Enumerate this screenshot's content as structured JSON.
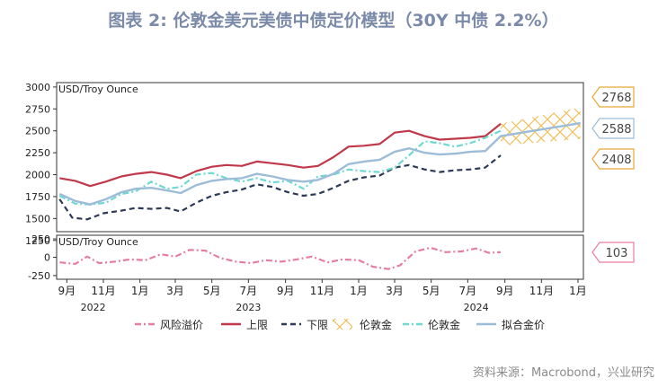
{
  "title": "图表 2:  伦敦金美元美债中债定价模型（30Y 中债 2.2%）",
  "source": "资料来源：Macrobond，兴业研究",
  "colors": {
    "upper": "#c0394b",
    "lower": "#2c3a55",
    "fitted": "#9cbcd8",
    "gold": "#6fd8d0",
    "forecast": "#f0c060",
    "risk": "#e57ea0",
    "callout_upper": "#e8a838",
    "callout_fit": "#9cbcd8",
    "callout_risk": "#e57ea0"
  },
  "chart_data": [
    {
      "type": "line",
      "panel": "main",
      "unit_label": "USD/Troy Ounce",
      "ylim": [
        1350,
        3050
      ],
      "yticks": [
        "3000",
        "2750",
        "2500",
        "2250",
        "2000",
        "1750",
        "1500",
        "1250"
      ],
      "x_range": [
        "2022-08-15",
        "2025-01-10"
      ],
      "forecast_start": "2024-08-25",
      "series": [
        {
          "name": "上限",
          "key": "upper",
          "style": "solid",
          "points": [
            [
              "2022-08-20",
              1960
            ],
            [
              "2022-09-15",
              1930
            ],
            [
              "2022-10-10",
              1870
            ],
            [
              "2022-11-05",
              1920
            ],
            [
              "2022-12-01",
              1980
            ],
            [
              "2022-12-25",
              2010
            ],
            [
              "2023-01-20",
              2030
            ],
            [
              "2023-02-15",
              2000
            ],
            [
              "2023-03-10",
              1960
            ],
            [
              "2023-04-05",
              2040
            ],
            [
              "2023-05-01",
              2090
            ],
            [
              "2023-05-25",
              2110
            ],
            [
              "2023-06-20",
              2100
            ],
            [
              "2023-07-15",
              2150
            ],
            [
              "2023-08-10",
              2130
            ],
            [
              "2023-09-05",
              2110
            ],
            [
              "2023-10-01",
              2080
            ],
            [
              "2023-10-25",
              2100
            ],
            [
              "2023-11-20",
              2200
            ],
            [
              "2023-12-15",
              2320
            ],
            [
              "2024-01-10",
              2330
            ],
            [
              "2024-02-05",
              2350
            ],
            [
              "2024-03-01",
              2480
            ],
            [
              "2024-03-25",
              2500
            ],
            [
              "2024-04-20",
              2440
            ],
            [
              "2024-05-15",
              2400
            ],
            [
              "2024-06-10",
              2410
            ],
            [
              "2024-07-05",
              2420
            ],
            [
              "2024-07-30",
              2440
            ],
            [
              "2024-08-25",
              2580
            ]
          ]
        },
        {
          "name": "下限",
          "key": "lower",
          "style": "dashed",
          "points": [
            [
              "2022-08-20",
              1720
            ],
            [
              "2022-09-10",
              1510
            ],
            [
              "2022-10-05",
              1490
            ],
            [
              "2022-11-01",
              1560
            ],
            [
              "2022-12-01",
              1590
            ],
            [
              "2022-12-25",
              1620
            ],
            [
              "2023-01-20",
              1610
            ],
            [
              "2023-02-15",
              1620
            ],
            [
              "2023-03-10",
              1580
            ],
            [
              "2023-04-05",
              1680
            ],
            [
              "2023-05-01",
              1760
            ],
            [
              "2023-05-25",
              1800
            ],
            [
              "2023-06-20",
              1830
            ],
            [
              "2023-07-15",
              1890
            ],
            [
              "2023-08-10",
              1860
            ],
            [
              "2023-09-05",
              1800
            ],
            [
              "2023-10-01",
              1760
            ],
            [
              "2023-10-25",
              1780
            ],
            [
              "2023-11-20",
              1850
            ],
            [
              "2023-12-15",
              1930
            ],
            [
              "2024-01-10",
              1970
            ],
            [
              "2024-02-05",
              1990
            ],
            [
              "2024-03-01",
              2080
            ],
            [
              "2024-03-25",
              2110
            ],
            [
              "2024-04-20",
              2060
            ],
            [
              "2024-05-15",
              2030
            ],
            [
              "2024-06-10",
              2050
            ],
            [
              "2024-07-05",
              2060
            ],
            [
              "2024-07-30",
              2080
            ],
            [
              "2024-08-25",
              2220
            ]
          ]
        },
        {
          "name": "伦敦金",
          "key": "gold",
          "style": "dashdot",
          "points": [
            [
              "2022-08-20",
              1760
            ],
            [
              "2022-09-15",
              1670
            ],
            [
              "2022-10-10",
              1660
            ],
            [
              "2022-11-05",
              1680
            ],
            [
              "2022-12-01",
              1780
            ],
            [
              "2022-12-25",
              1810
            ],
            [
              "2023-01-20",
              1920
            ],
            [
              "2023-02-15",
              1840
            ],
            [
              "2023-03-10",
              1860
            ],
            [
              "2023-04-05",
              2000
            ],
            [
              "2023-05-01",
              2020
            ],
            [
              "2023-05-25",
              1960
            ],
            [
              "2023-06-20",
              1920
            ],
            [
              "2023-07-15",
              1960
            ],
            [
              "2023-08-10",
              1910
            ],
            [
              "2023-09-05",
              1930
            ],
            [
              "2023-10-01",
              1840
            ],
            [
              "2023-10-25",
              1980
            ],
            [
              "2023-11-20",
              2000
            ],
            [
              "2023-12-15",
              2060
            ],
            [
              "2024-01-10",
              2040
            ],
            [
              "2024-02-05",
              2030
            ],
            [
              "2024-03-01",
              2080
            ],
            [
              "2024-03-25",
              2220
            ],
            [
              "2024-04-20",
              2380
            ],
            [
              "2024-05-15",
              2360
            ],
            [
              "2024-06-10",
              2320
            ],
            [
              "2024-07-05",
              2360
            ],
            [
              "2024-07-30",
              2420
            ],
            [
              "2024-08-25",
              2500
            ]
          ]
        },
        {
          "name": "拟合金价",
          "key": "fitted",
          "style": "solid",
          "points": [
            [
              "2022-08-20",
              1780
            ],
            [
              "2022-09-15",
              1700
            ],
            [
              "2022-10-10",
              1660
            ],
            [
              "2022-11-05",
              1720
            ],
            [
              "2022-12-01",
              1800
            ],
            [
              "2022-12-25",
              1840
            ],
            [
              "2023-01-20",
              1850
            ],
            [
              "2023-02-15",
              1820
            ],
            [
              "2023-03-10",
              1790
            ],
            [
              "2023-04-05",
              1880
            ],
            [
              "2023-05-01",
              1930
            ],
            [
              "2023-05-25",
              1950
            ],
            [
              "2023-06-20",
              1960
            ],
            [
              "2023-07-15",
              2010
            ],
            [
              "2023-08-10",
              1980
            ],
            [
              "2023-09-05",
              1940
            ],
            [
              "2023-10-01",
              1920
            ],
            [
              "2023-10-25",
              1940
            ],
            [
              "2023-11-20",
              2010
            ],
            [
              "2023-12-15",
              2120
            ],
            [
              "2024-01-10",
              2150
            ],
            [
              "2024-02-05",
              2170
            ],
            [
              "2024-03-01",
              2260
            ],
            [
              "2024-03-25",
              2300
            ],
            [
              "2024-04-20",
              2250
            ],
            [
              "2024-05-15",
              2230
            ],
            [
              "2024-06-10",
              2240
            ],
            [
              "2024-07-05",
              2260
            ],
            [
              "2024-07-30",
              2270
            ],
            [
              "2024-08-25",
              2440
            ],
            [
              "2025-01-05",
              2588
            ]
          ]
        }
      ],
      "forecast_band": {
        "name": "伦敦金",
        "start": "2024-08-25",
        "end": "2025-01-05",
        "upper": [
          [
            "2024-08-25",
            2580
          ],
          [
            "2025-01-05",
            2768
          ]
        ],
        "lower": [
          [
            "2024-08-25",
            2330
          ],
          [
            "2025-01-05",
            2408
          ]
        ]
      },
      "callouts": [
        {
          "label": "2768",
          "value": 2768,
          "key": "callout_upper"
        },
        {
          "label": "2588",
          "value": 2588,
          "key": "callout_fit"
        },
        {
          "label": "2408",
          "value": 2408,
          "key": "callout_upper"
        }
      ]
    },
    {
      "type": "line",
      "panel": "risk",
      "unit_label": "USD/Troy Ounce",
      "ylim": [
        -300,
        300
      ],
      "yticks": [
        "250",
        "0",
        "-250"
      ],
      "series": [
        {
          "name": "风险溢价",
          "key": "risk",
          "style": "dashdot",
          "points": [
            [
              "2022-08-20",
              -70
            ],
            [
              "2022-09-15",
              -90
            ],
            [
              "2022-10-05",
              10
            ],
            [
              "2022-10-25",
              -80
            ],
            [
              "2022-11-20",
              -60
            ],
            [
              "2022-12-15",
              -30
            ],
            [
              "2023-01-10",
              -40
            ],
            [
              "2023-02-05",
              40
            ],
            [
              "2023-03-01",
              10
            ],
            [
              "2023-03-25",
              100
            ],
            [
              "2023-04-20",
              90
            ],
            [
              "2023-05-15",
              -10
            ],
            [
              "2023-06-10",
              -60
            ],
            [
              "2023-07-05",
              -80
            ],
            [
              "2023-07-30",
              -40
            ],
            [
              "2023-08-25",
              -60
            ],
            [
              "2023-09-20",
              -30
            ],
            [
              "2023-10-15",
              10
            ],
            [
              "2023-11-10",
              -70
            ],
            [
              "2023-12-05",
              -30
            ],
            [
              "2024-01-01",
              -40
            ],
            [
              "2024-01-25",
              -130
            ],
            [
              "2024-02-20",
              -160
            ],
            [
              "2024-03-10",
              -110
            ],
            [
              "2024-04-05",
              80
            ],
            [
              "2024-04-30",
              130
            ],
            [
              "2024-05-25",
              70
            ],
            [
              "2024-06-20",
              80
            ],
            [
              "2024-07-15",
              120
            ],
            [
              "2024-08-05",
              60
            ],
            [
              "2024-08-25",
              70
            ]
          ]
        }
      ],
      "callouts": [
        {
          "label": "103",
          "value": 103,
          "key": "callout_risk"
        }
      ]
    }
  ],
  "x_axis": {
    "ticks": [
      {
        "date": "2022-09-01",
        "label": "9月"
      },
      {
        "date": "2022-11-01",
        "label": "11月"
      },
      {
        "date": "2023-01-01",
        "label": "1月"
      },
      {
        "date": "2023-03-01",
        "label": "3月"
      },
      {
        "date": "2023-05-01",
        "label": "5月"
      },
      {
        "date": "2023-07-01",
        "label": "7月"
      },
      {
        "date": "2023-09-01",
        "label": "9月"
      },
      {
        "date": "2023-11-01",
        "label": "11月"
      },
      {
        "date": "2024-01-01",
        "label": "1月"
      },
      {
        "date": "2024-03-01",
        "label": "3月"
      },
      {
        "date": "2024-05-01",
        "label": "5月"
      },
      {
        "date": "2024-07-01",
        "label": "7月"
      },
      {
        "date": "2024-09-01",
        "label": "9月"
      },
      {
        "date": "2024-11-01",
        "label": "11月"
      },
      {
        "date": "2025-01-01",
        "label": "1月"
      }
    ],
    "years": [
      {
        "date": "2022-10-15",
        "label": "2022"
      },
      {
        "date": "2023-07-01",
        "label": "2023"
      },
      {
        "date": "2024-07-15",
        "label": "2024"
      }
    ]
  },
  "legend": [
    {
      "label": "风险溢价",
      "key": "risk",
      "style": "dashdot"
    },
    {
      "label": "上限",
      "key": "upper",
      "style": "solid"
    },
    {
      "label": "下限",
      "key": "lower",
      "style": "dashed"
    },
    {
      "label": "伦敦金",
      "key": "forecast",
      "style": "cross"
    },
    {
      "label": "伦敦金",
      "key": "gold",
      "style": "dashdot"
    },
    {
      "label": "拟合金价",
      "key": "fitted",
      "style": "solid"
    }
  ]
}
